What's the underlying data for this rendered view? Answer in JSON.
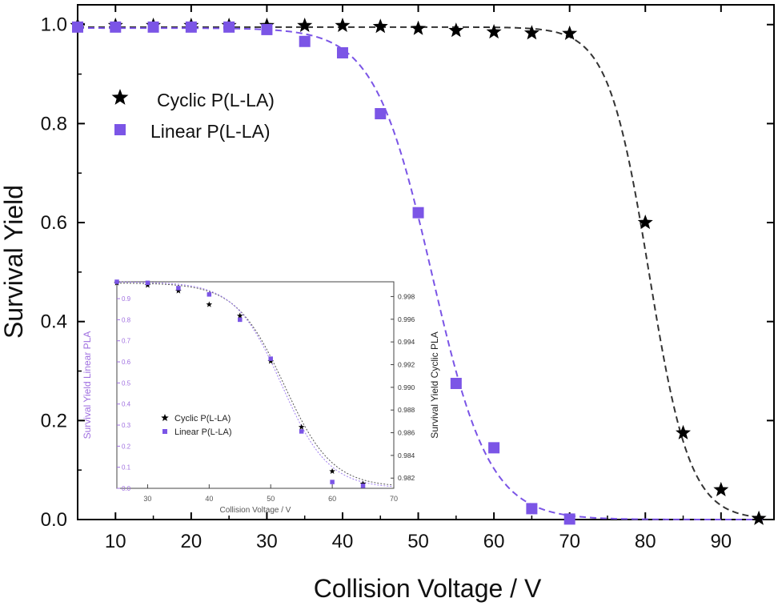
{
  "chart_data": [
    {
      "type": "scatter",
      "xlabel": "Collision Voltage / V",
      "ylabel": "Survival Yield",
      "xlim": [
        5,
        97
      ],
      "ylim": [
        0,
        1.04
      ],
      "xticks": [
        10,
        20,
        30,
        40,
        50,
        60,
        70,
        80,
        90
      ],
      "yticks": [
        0.0,
        0.2,
        0.4,
        0.6,
        0.8,
        1.0
      ],
      "xtick_labels": [
        "10",
        "20",
        "30",
        "40",
        "50",
        "60",
        "70",
        "80",
        "90"
      ],
      "ytick_labels": [
        "0.0",
        "0.2",
        "0.4",
        "0.6",
        "0.8",
        "1.0"
      ],
      "legend_position": "top-left",
      "series": [
        {
          "name": "Cyclic P(L-LA)",
          "marker": "star",
          "color": "#000000",
          "fit_color": "#333333",
          "fit": {
            "top": 0.995,
            "x50": 80.5,
            "width": 2.7
          },
          "x": [
            5,
            10,
            15,
            20,
            25,
            30,
            35,
            40,
            45,
            50,
            55,
            60,
            65,
            70,
            80,
            85,
            90,
            95
          ],
          "y": [
            0.998,
            0.998,
            0.998,
            0.998,
            0.998,
            0.998,
            0.998,
            0.998,
            0.996,
            0.992,
            0.988,
            0.985,
            0.983,
            0.982,
            0.6,
            0.175,
            0.06,
            0.002
          ]
        },
        {
          "name": "Linear P(L-LA)",
          "marker": "square",
          "color": "#7b55e6",
          "fit_color": "#7b55e6",
          "fit": {
            "top": 0.993,
            "x50": 51.8,
            "width": 3.8
          },
          "x": [
            5,
            10,
            15,
            20,
            25,
            30,
            35,
            40,
            45,
            50,
            55,
            60,
            65,
            70
          ],
          "y": [
            0.995,
            0.995,
            0.995,
            0.995,
            0.995,
            0.99,
            0.966,
            0.943,
            0.82,
            0.62,
            0.275,
            0.145,
            0.022,
            0.001
          ]
        }
      ]
    },
    {
      "type": "scatter",
      "inset": true,
      "xlabel": "Collision Voltage / V",
      "ylabel_left": "Survival Yield Linear PLA",
      "ylabel_right": "Survival Yield Cyclic PLA",
      "xlim": [
        25,
        70
      ],
      "ylim_left": [
        0,
        0.98
      ],
      "ylim_right": [
        0.9811,
        0.9993
      ],
      "xticks": [
        30,
        40,
        50,
        60,
        70
      ],
      "xtick_labels": [
        "30",
        "40",
        "50",
        "60",
        "70"
      ],
      "yticks_left": [
        0.0,
        0.1,
        0.2,
        0.3,
        0.4,
        0.5,
        0.6,
        0.7,
        0.8,
        0.9
      ],
      "ytick_labels_left": [
        "0.0",
        "0.1",
        "0.2",
        "0.3",
        "0.4",
        "0.5",
        "0.6",
        "0.7",
        "0.8",
        "0.9"
      ],
      "yticks_right": [
        0.982,
        0.984,
        0.986,
        0.988,
        0.99,
        0.992,
        0.994,
        0.996,
        0.998
      ],
      "ytick_labels_right": [
        "0.982",
        "0.984",
        "0.986",
        "0.988",
        "0.990",
        "0.992",
        "0.994",
        "0.996",
        "0.998"
      ],
      "legend_position": "bottom-center",
      "series": [
        {
          "name": "Cyclic P(L-LA)",
          "axis": "right",
          "marker": "star",
          "color": "#000000",
          "fit_color": "#555555",
          "fit": {
            "top": 0.9992,
            "bottom": 0.9812,
            "x50": 52.2,
            "width": 3.9
          },
          "x": [
            25,
            30,
            35,
            40,
            45,
            50,
            55,
            60,
            65
          ],
          "y": [
            0.9992,
            0.999,
            0.9985,
            0.9973,
            0.9963,
            0.9923,
            0.9865,
            0.9826,
            0.9815
          ]
        },
        {
          "name": "Linear P(L-LA)",
          "axis": "left",
          "marker": "square",
          "color": "#7b55e6",
          "fit_color": "#a07ff0",
          "fit": {
            "top": 0.98,
            "bottom": 0.0,
            "x50": 51.8,
            "width": 3.8
          },
          "x": [
            25,
            30,
            35,
            40,
            45,
            50,
            55,
            60,
            65
          ],
          "y": [
            0.98,
            0.975,
            0.95,
            0.92,
            0.8,
            0.615,
            0.27,
            0.03,
            0.012
          ]
        }
      ]
    }
  ]
}
